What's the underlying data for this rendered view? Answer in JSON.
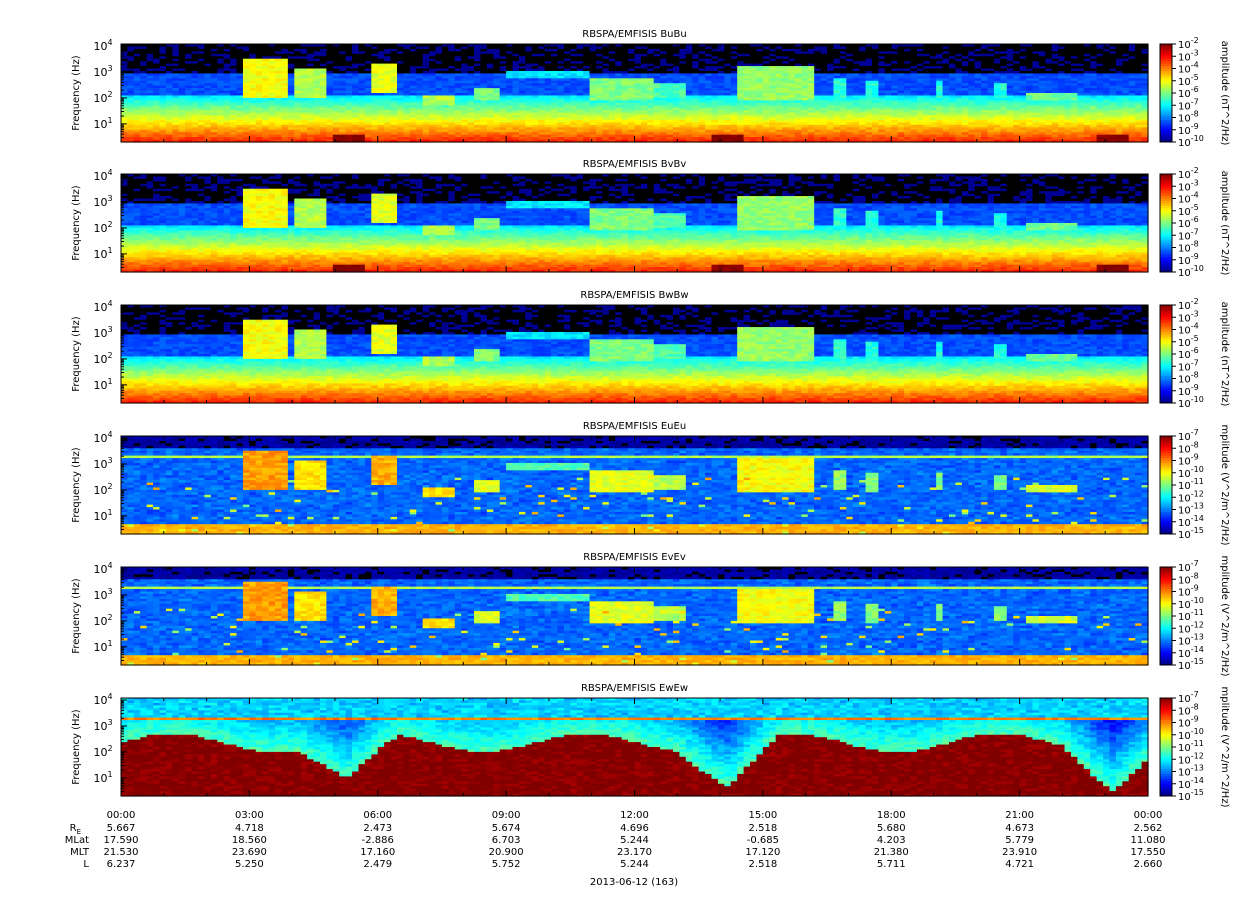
{
  "chart_data": {
    "type": "heatmap",
    "panels": [
      {
        "title": "RBSPA/EMFISIS  BuBu",
        "kind": "B",
        "ylabel": "Frequency (Hz)",
        "yscale": "log",
        "ylim": [
          2,
          12000
        ],
        "yticks": [
          {
            "m": "10",
            "e": "1"
          },
          {
            "m": "10",
            "e": "2"
          },
          {
            "m": "10",
            "e": "3"
          },
          {
            "m": "10",
            "e": "4"
          }
        ],
        "colorbar": {
          "label": "amplitude (nT^2/Hz)",
          "range_exp": [
            -10,
            -2
          ],
          "ticks": [
            "-2",
            "-3",
            "-4",
            "-5",
            "-6",
            "-7",
            "-8",
            "-9",
            "-10"
          ]
        }
      },
      {
        "title": "RBSPA/EMFISIS  BvBv",
        "kind": "B",
        "ylabel": "Frequency (Hz)",
        "yscale": "log",
        "ylim": [
          2,
          12000
        ],
        "yticks": [
          {
            "m": "10",
            "e": "1"
          },
          {
            "m": "10",
            "e": "2"
          },
          {
            "m": "10",
            "e": "3"
          },
          {
            "m": "10",
            "e": "4"
          }
        ],
        "colorbar": {
          "label": "amplitude (nT^2/Hz)",
          "range_exp": [
            -10,
            -2
          ],
          "ticks": [
            "-2",
            "-3",
            "-4",
            "-5",
            "-6",
            "-7",
            "-8",
            "-9",
            "-10"
          ]
        }
      },
      {
        "title": "RBSPA/EMFISIS  BwBw",
        "kind": "Bw",
        "ylabel": "Frequency (Hz)",
        "yscale": "log",
        "ylim": [
          2,
          12000
        ],
        "yticks": [
          {
            "m": "10",
            "e": "1"
          },
          {
            "m": "10",
            "e": "2"
          },
          {
            "m": "10",
            "e": "3"
          },
          {
            "m": "10",
            "e": "4"
          }
        ],
        "colorbar": {
          "label": "amplitude (nT^2/Hz)",
          "range_exp": [
            -10,
            -2
          ],
          "ticks": [
            "-2",
            "-3",
            "-4",
            "-5",
            "-6",
            "-7",
            "-8",
            "-9",
            "-10"
          ]
        }
      },
      {
        "title": "RBSPA/EMFISIS  EuEu",
        "kind": "E",
        "ylabel": "Frequency (Hz)",
        "yscale": "log",
        "ylim": [
          2,
          12000
        ],
        "yticks": [
          {
            "m": "10",
            "e": "1"
          },
          {
            "m": "10",
            "e": "2"
          },
          {
            "m": "10",
            "e": "3"
          },
          {
            "m": "10",
            "e": "4"
          }
        ],
        "colorbar": {
          "label": "mplitude (V^2/m^2/Hz)",
          "range_exp": [
            -15,
            -7
          ],
          "ticks": [
            "-7",
            "-8",
            "-9",
            "-10",
            "-11",
            "-12",
            "-13",
            "-14",
            "-15"
          ]
        }
      },
      {
        "title": "RBSPA/EMFISIS  EvEv",
        "kind": "E",
        "ylabel": "Frequency (Hz)",
        "yscale": "log",
        "ylim": [
          2,
          12000
        ],
        "yticks": [
          {
            "m": "10",
            "e": "1"
          },
          {
            "m": "10",
            "e": "2"
          },
          {
            "m": "10",
            "e": "3"
          },
          {
            "m": "10",
            "e": "4"
          }
        ],
        "colorbar": {
          "label": "mplitude (V^2/m^2/Hz)",
          "range_exp": [
            -15,
            -7
          ],
          "ticks": [
            "-7",
            "-8",
            "-9",
            "-10",
            "-11",
            "-12",
            "-13",
            "-14",
            "-15"
          ]
        }
      },
      {
        "title": "RBSPA/EMFISIS  EwEw",
        "kind": "Ew",
        "ylabel": "Frequency (Hz)",
        "yscale": "log",
        "ylim": [
          2,
          12000
        ],
        "yticks": [
          {
            "m": "10",
            "e": "1"
          },
          {
            "m": "10",
            "e": "2"
          },
          {
            "m": "10",
            "e": "3"
          },
          {
            "m": "10",
            "e": "4"
          }
        ],
        "colorbar": {
          "label": "mplitude (V^2/m^2/Hz)",
          "range_exp": [
            -15,
            -7
          ],
          "ticks": [
            "-7",
            "-8",
            "-9",
            "-10",
            "-11",
            "-12",
            "-13",
            "-14",
            "-15"
          ]
        }
      }
    ],
    "x_range_hours": [
      0,
      24
    ],
    "x_ticks": [
      "00:00",
      "03:00",
      "06:00",
      "09:00",
      "12:00",
      "15:00",
      "18:00",
      "21:00",
      "00:00"
    ],
    "ephemeris": [
      {
        "key": "RE",
        "label": "R",
        "sub": "E",
        "values": [
          "5.667",
          "4.718",
          "2.473",
          "5.674",
          "4.696",
          "2.518",
          "5.680",
          "4.673",
          "2.562"
        ]
      },
      {
        "key": "MLat",
        "label": "MLat",
        "sub": "",
        "values": [
          "17.590",
          "18.560",
          "-2.886",
          "6.703",
          "5.244",
          "-0.685",
          "4.203",
          "5.779",
          "11.080"
        ]
      },
      {
        "key": "MLT",
        "label": "MLT",
        "sub": "",
        "values": [
          "21.530",
          "23.690",
          "17.160",
          "20.900",
          "23.170",
          "17.120",
          "21.380",
          "23.910",
          "17.550"
        ]
      },
      {
        "key": "L",
        "label": "L",
        "sub": "",
        "values": [
          "6.237",
          "5.250",
          "2.479",
          "5.752",
          "5.244",
          "2.518",
          "5.711",
          "4.721",
          "2.660"
        ]
      }
    ],
    "date_label": "2013-06-12 (163)",
    "colors": {
      "background": "#000000",
      "outline": "#000000"
    }
  }
}
